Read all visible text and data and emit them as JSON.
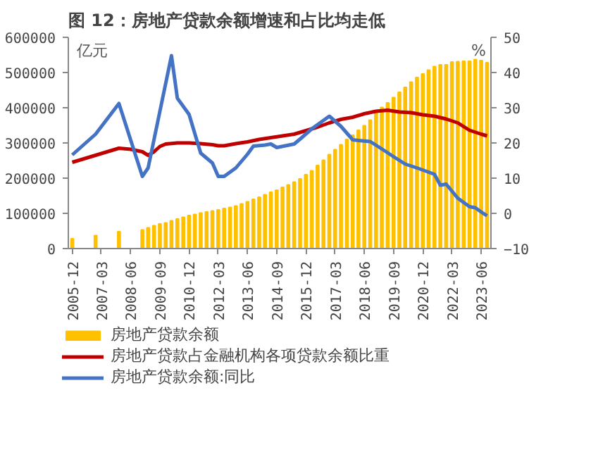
{
  "chart_data": {
    "type": "bar",
    "title": "图 12：房地产贷款余额增速和占比均走低",
    "ylabel": "亿元",
    "y2label": "%",
    "xlim": [
      "2005-10",
      "2023-11"
    ],
    "xticks": [
      "2005-12",
      "2007-03",
      "2008-06",
      "2009-09",
      "2010-12",
      "2012-03",
      "2013-06",
      "2014-09",
      "2015-12",
      "2017-03",
      "2018-06",
      "2019-09",
      "2020-12",
      "2022-03",
      "2023-06"
    ],
    "ylim": [
      0,
      600000
    ],
    "yticks": [
      0,
      100000,
      200000,
      300000,
      400000,
      500000,
      600000
    ],
    "y2lim": [
      -10,
      50
    ],
    "y2ticks": [
      -10,
      0,
      10,
      20,
      30,
      40,
      50
    ],
    "grid": false,
    "legend": "bottom",
    "series": [
      {
        "name": "房地产贷款余额",
        "type": "bar",
        "color": "#ffc000",
        "x": [
          "2005-12",
          "2006-12",
          "2007-12",
          "2008-12",
          "2009-03",
          "2009-06",
          "2009-09",
          "2009-12",
          "2010-03",
          "2010-06",
          "2010-09",
          "2010-12",
          "2011-03",
          "2011-06",
          "2011-09",
          "2011-12",
          "2012-03",
          "2012-06",
          "2012-09",
          "2012-12",
          "2013-03",
          "2013-06",
          "2013-09",
          "2013-12",
          "2014-03",
          "2014-06",
          "2014-09",
          "2014-12",
          "2015-03",
          "2015-06",
          "2015-09",
          "2015-12",
          "2016-03",
          "2016-06",
          "2016-09",
          "2016-12",
          "2017-03",
          "2017-06",
          "2017-09",
          "2017-12",
          "2018-03",
          "2018-06",
          "2018-09",
          "2018-12",
          "2019-03",
          "2019-06",
          "2019-09",
          "2019-12",
          "2020-03",
          "2020-06",
          "2020-09",
          "2020-12",
          "2021-03",
          "2021-06",
          "2021-09",
          "2021-12",
          "2022-03",
          "2022-06",
          "2022-09",
          "2022-12",
          "2023-03",
          "2023-06",
          "2023-09"
        ],
        "values": [
          28000,
          37000,
          48000,
          53000,
          59000,
          65000,
          70000,
          73000,
          79000,
          84000,
          89000,
          94000,
          97000,
          101000,
          104000,
          107000,
          110000,
          114000,
          117000,
          121000,
          127000,
          133000,
          140000,
          146000,
          153000,
          160000,
          166000,
          174000,
          181000,
          189000,
          198000,
          210000,
          221000,
          236000,
          251000,
          267000,
          281000,
          295000,
          310000,
          322000,
          336000,
          349000,
          365000,
          387000,
          401000,
          414000,
          429000,
          444000,
          458000,
          473000,
          486000,
          496000,
          507000,
          517000,
          522000,
          522000,
          530000,
          531000,
          532000,
          532000,
          537000,
          534000,
          528000
        ]
      },
      {
        "name": "房地产贷款占金融机构各项贷款余额比重",
        "type": "line",
        "axis": "y2",
        "color": "#c00000",
        "x": [
          "2005-12",
          "2006-12",
          "2007-12",
          "2008-06",
          "2008-12",
          "2009-03",
          "2009-06",
          "2009-09",
          "2009-12",
          "2010-06",
          "2010-12",
          "2011-06",
          "2011-12",
          "2012-03",
          "2012-06",
          "2012-12",
          "2013-06",
          "2013-12",
          "2014-06",
          "2014-12",
          "2015-06",
          "2015-12",
          "2016-06",
          "2016-12",
          "2017-06",
          "2017-12",
          "2018-06",
          "2018-12",
          "2019-06",
          "2019-12",
          "2020-06",
          "2020-12",
          "2021-06",
          "2021-12",
          "2022-06",
          "2022-12",
          "2023-06",
          "2023-09"
        ],
        "values": [
          14.5,
          16.5,
          18.5,
          18.2,
          17.5,
          16.5,
          17.5,
          19,
          19.7,
          20,
          20,
          19.8,
          19.5,
          19.2,
          19.2,
          19.8,
          20.3,
          21,
          21.5,
          22,
          22.5,
          23.5,
          24.5,
          25.7,
          26.7,
          27.3,
          28.3,
          29,
          29.3,
          28.8,
          28.6,
          28,
          27.6,
          26.8,
          25.7,
          23.6,
          22.5,
          22
        ]
      },
      {
        "name": "房地产贷款余额:同比",
        "type": "line",
        "axis": "y2",
        "color": "#4472c4",
        "x": [
          "2005-12",
          "2006-12",
          "2007-12",
          "2008-12",
          "2009-03",
          "2010-03",
          "2010-06",
          "2010-12",
          "2011-06",
          "2011-12",
          "2012-03",
          "2012-06",
          "2012-12",
          "2013-06",
          "2013-09",
          "2014-03",
          "2014-06",
          "2014-09",
          "2015-06",
          "2015-09",
          "2016-03",
          "2016-12",
          "2017-06",
          "2017-12",
          "2018-03",
          "2018-09",
          "2019-03",
          "2019-09",
          "2020-03",
          "2020-09",
          "2021-06",
          "2021-09",
          "2021-12",
          "2022-06",
          "2022-12",
          "2023-03",
          "2023-06",
          "2023-09"
        ],
        "values": [
          16.6,
          22.5,
          31.2,
          10.5,
          12.9,
          44.8,
          32.7,
          28.1,
          17.1,
          14.3,
          10.5,
          10.5,
          12.9,
          16.8,
          19.1,
          19.4,
          19.7,
          18.7,
          19.7,
          21.1,
          24,
          27.6,
          24.7,
          20.9,
          20.7,
          20.4,
          18.3,
          16.1,
          14,
          12.9,
          11.1,
          8,
          8.3,
          4.3,
          1.9,
          1.6,
          0.4,
          -0.7
        ]
      }
    ]
  }
}
